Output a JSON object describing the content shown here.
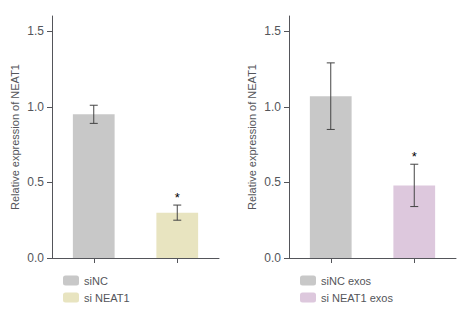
{
  "chart_data": [
    {
      "type": "bar",
      "ylabel": "Relative expression of NEAT1",
      "categories": [
        null,
        null
      ],
      "series": [
        {
          "name": "siNC",
          "color": "#c8c8c8",
          "values": [
            0.95,
            null
          ],
          "errors": [
            0.06,
            null
          ]
        },
        {
          "name": "si NEAT1",
          "color": "#e8e4c0",
          "values": [
            null,
            0.3
          ],
          "errors": [
            null,
            0.05
          ]
        }
      ],
      "annotations": [
        {
          "text": "*",
          "series": "si NEAT1"
        }
      ],
      "ylim": [
        0,
        1.6
      ],
      "yticks": [
        {
          "value": 0.0,
          "label": "0.0"
        },
        {
          "value": 0.5,
          "label": "0.5"
        },
        {
          "value": 1.0,
          "label": "1.0"
        },
        {
          "value": 1.5,
          "label": "1.5"
        }
      ],
      "grid": false,
      "legend": "bottom",
      "tick_labels": "y"
    },
    {
      "type": "bar",
      "ylabel": "Relative expression of NEAT1",
      "categories": [
        null,
        null
      ],
      "series": [
        {
          "name": "siNC exos",
          "color": "#c8c8c8",
          "values": [
            1.07,
            null
          ],
          "errors": [
            0.22,
            null
          ]
        },
        {
          "name": "si NEAT1 exos",
          "color": "#ddc8dd",
          "values": [
            null,
            0.48
          ],
          "errors": [
            null,
            0.14
          ]
        }
      ],
      "annotations": [
        {
          "text": "*",
          "series": "si NEAT1 exos"
        }
      ],
      "ylim": [
        0,
        1.6
      ],
      "yticks": [
        {
          "value": 0.0,
          "label": "0.0"
        },
        {
          "value": 0.5,
          "label": "0.5"
        },
        {
          "value": 1.0,
          "label": "1.0"
        },
        {
          "value": 1.5,
          "label": "1.5"
        }
      ],
      "grid": false,
      "legend": "bottom",
      "tick_labels": "y"
    }
  ]
}
